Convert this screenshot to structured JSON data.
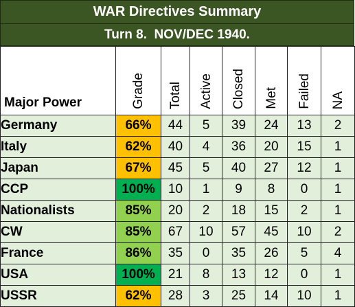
{
  "title": "WAR Directives Summary",
  "turn": "Turn 8.  NOV/DEC 1940.",
  "headers": {
    "power": "Major Power",
    "grade": "Grade",
    "total": "Total",
    "active": "Active",
    "closed": "Closed",
    "met": "Met",
    "failed": "Failed",
    "na": "NA"
  },
  "colors": {
    "header_bar": "#3b5523",
    "row_fill": "#e2efda",
    "grade_low": "#ffc000",
    "grade_mid": "#92d050",
    "grade_top": "#00b050"
  },
  "rows": [
    {
      "power": "Germany",
      "grade": "66%",
      "grade_level": "low",
      "total": "44",
      "active": "5",
      "closed": "39",
      "met": "24",
      "failed": "13",
      "na": "2"
    },
    {
      "power": "Italy",
      "grade": "62%",
      "grade_level": "low",
      "total": "40",
      "active": "4",
      "closed": "36",
      "met": "20",
      "failed": "15",
      "na": "1"
    },
    {
      "power": "Japan",
      "grade": "67%",
      "grade_level": "low",
      "total": "45",
      "active": "5",
      "closed": "40",
      "met": "27",
      "failed": "12",
      "na": "1"
    },
    {
      "power": "CCP",
      "grade": "100%",
      "grade_level": "top",
      "total": "10",
      "active": "1",
      "closed": "9",
      "met": "8",
      "failed": "0",
      "na": "1"
    },
    {
      "power": "Nationalists",
      "grade": "85%",
      "grade_level": "mid",
      "total": "20",
      "active": "2",
      "closed": "18",
      "met": "15",
      "failed": "2",
      "na": "1"
    },
    {
      "power": "CW",
      "grade": "85%",
      "grade_level": "mid",
      "total": "67",
      "active": "10",
      "closed": "57",
      "met": "45",
      "failed": "10",
      "na": "2"
    },
    {
      "power": "France",
      "grade": "86%",
      "grade_level": "mid",
      "total": "35",
      "active": "0",
      "closed": "35",
      "met": "26",
      "failed": "5",
      "na": "4"
    },
    {
      "power": "USA",
      "grade": "100%",
      "grade_level": "top",
      "total": "21",
      "active": "8",
      "closed": "13",
      "met": "12",
      "failed": "0",
      "na": "1"
    },
    {
      "power": "USSR",
      "grade": "62%",
      "grade_level": "low",
      "total": "28",
      "active": "3",
      "closed": "25",
      "met": "14",
      "failed": "10",
      "na": "1"
    }
  ]
}
